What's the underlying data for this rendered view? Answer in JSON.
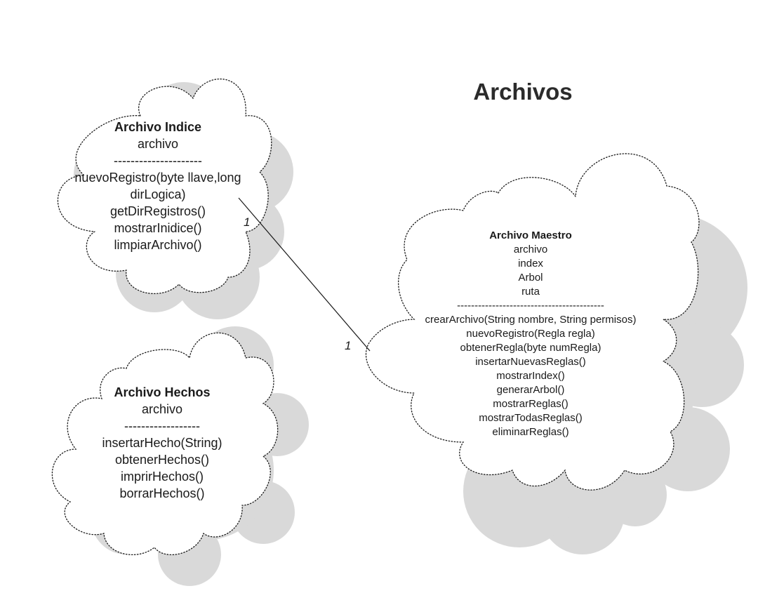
{
  "diagram": {
    "title": "Archivos",
    "colors": {
      "shadow": "#d9d9d9",
      "outline": "#1a1a1a",
      "text": "#1a1a1a",
      "background": "#ffffff"
    },
    "classes": {
      "archivo_indice": {
        "name": "Archivo Indice",
        "attributes": [
          "archivo"
        ],
        "separator": "---------------------",
        "methods": [
          "nuevoRegistro(byte llave,long",
          "dirLogica)",
          "getDirRegistros()",
          "mostrarInidice()",
          "limpiarArchivo()"
        ]
      },
      "archivo_hechos": {
        "name": "Archivo Hechos",
        "attributes": [
          "archivo"
        ],
        "separator": "------------------",
        "methods": [
          "insertarHecho(String)",
          "obtenerHechos()",
          "imprirHechos()",
          "borrarHechos()"
        ]
      },
      "archivo_maestro": {
        "name": "Archivo Maestro",
        "attributes": [
          "archivo",
          "index",
          "Arbol",
          "ruta"
        ],
        "separator": "------------------------------------------",
        "methods": [
          "crearArchivo(String nombre, String permisos)",
          "nuevoRegistro(Regla regla)",
          "obtenerRegla(byte numRegla)",
          "insertarNuevasReglas()",
          "mostrarIndex()",
          "generarArbol()",
          "mostrarReglas()",
          "mostrarTodasReglas()",
          "eliminarReglas()"
        ]
      }
    },
    "association": {
      "from": "Archivo Indice",
      "to": "Archivo Maestro",
      "from_multiplicity": "1",
      "to_multiplicity": "1"
    }
  }
}
